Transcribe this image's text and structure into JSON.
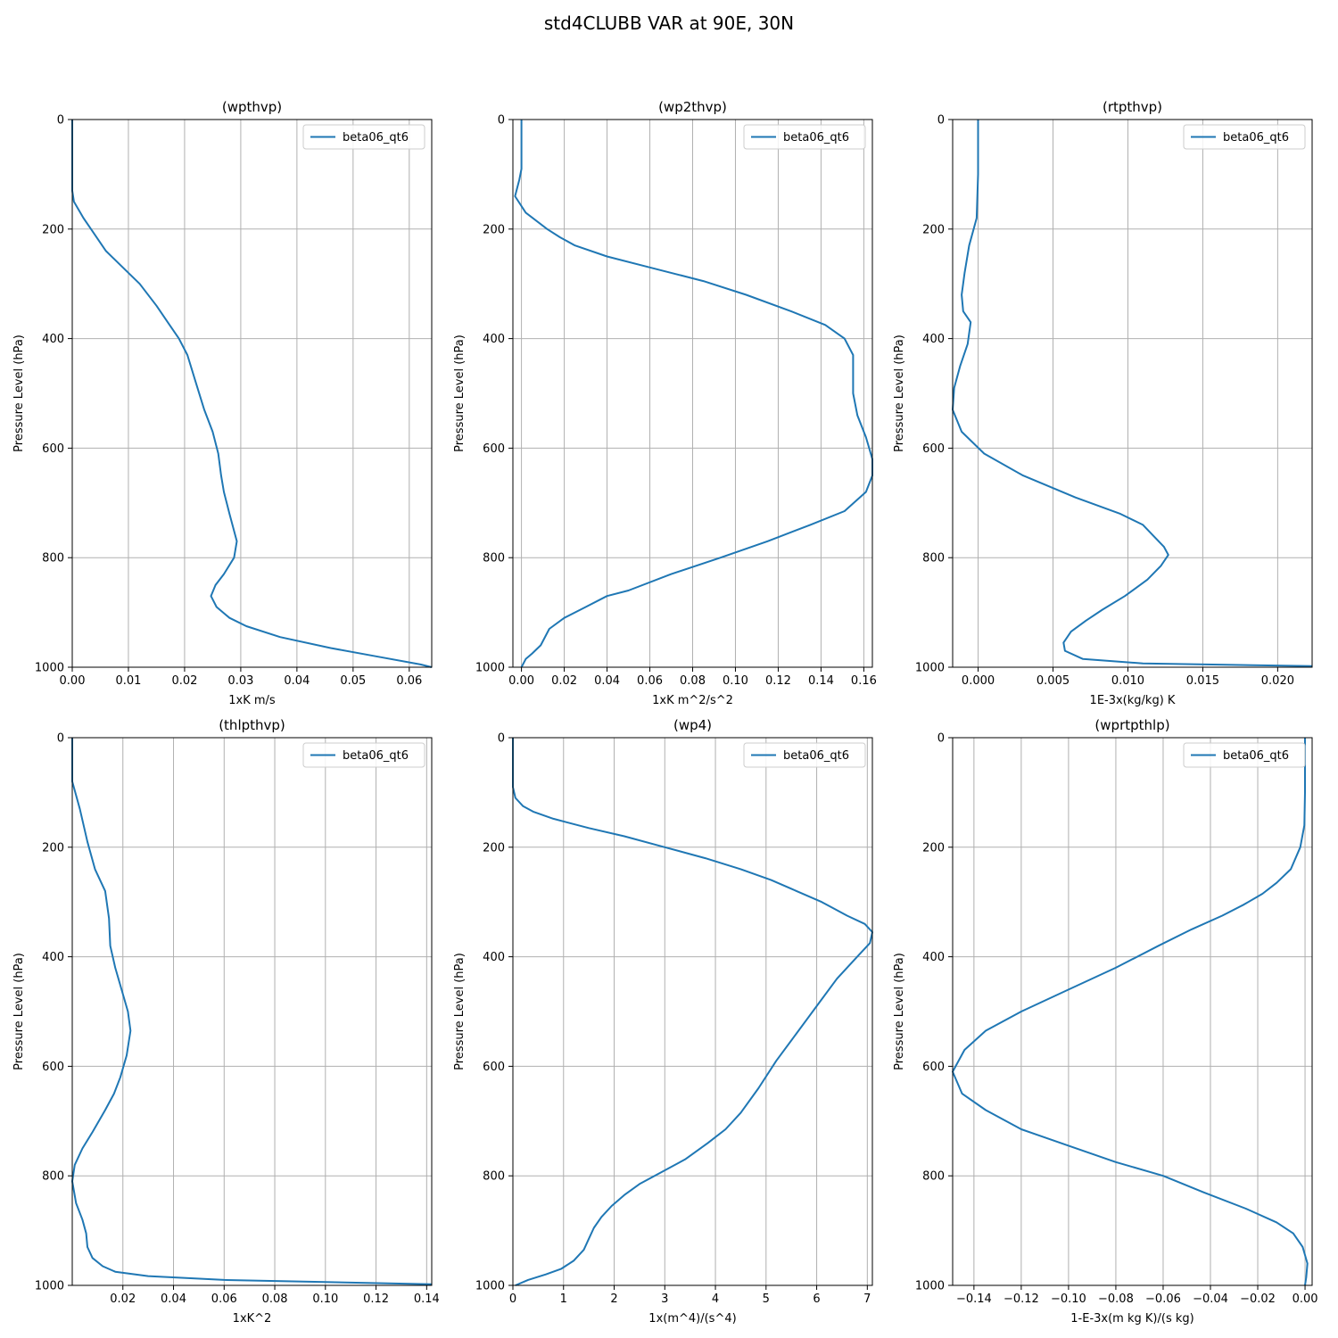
{
  "figure": {
    "title": "std4CLUBB VAR at 90E, 30N"
  },
  "style": {
    "line_color": "#1f77b4",
    "grid_color": "#b0b0b0"
  },
  "chart_data": [
    {
      "type": "line",
      "title": "(wpthvp)",
      "xlabel": "1xK m/s",
      "ylabel": "Pressure Level (hPa)",
      "xlim": [
        0,
        0.064
      ],
      "ylim": [
        1000,
        0
      ],
      "xticks": [
        0,
        0.01,
        0.02,
        0.03,
        0.04,
        0.05,
        0.06
      ],
      "xtick_labels": [
        "0.00",
        "0.01",
        "0.02",
        "0.03",
        "0.04",
        "0.05",
        "0.06"
      ],
      "yticks": [
        0,
        200,
        400,
        600,
        800,
        1000
      ],
      "ytick_labels": [
        "0",
        "200",
        "400",
        "600",
        "800",
        "1000"
      ],
      "grid": true,
      "legend": "top-right",
      "series": [
        {
          "name": "beta06_qt6",
          "points": [
            [
              0,
              0
            ],
            [
              0,
              100
            ],
            [
              0,
              130
            ],
            [
              0.0003,
              150
            ],
            [
              0.002,
              180
            ],
            [
              0.004,
              210
            ],
            [
              0.006,
              240
            ],
            [
              0.009,
              270
            ],
            [
              0.012,
              300
            ],
            [
              0.015,
              340
            ],
            [
              0.017,
              370
            ],
            [
              0.019,
              400
            ],
            [
              0.0205,
              430
            ],
            [
              0.022,
              480
            ],
            [
              0.0235,
              530
            ],
            [
              0.025,
              570
            ],
            [
              0.026,
              610
            ],
            [
              0.0265,
              650
            ],
            [
              0.027,
              680
            ],
            [
              0.028,
              720
            ],
            [
              0.0293,
              770
            ],
            [
              0.0288,
              800
            ],
            [
              0.027,
              830
            ],
            [
              0.0255,
              850
            ],
            [
              0.0247,
              870
            ],
            [
              0.0257,
              890
            ],
            [
              0.028,
              910
            ],
            [
              0.031,
              925
            ],
            [
              0.037,
              945
            ],
            [
              0.046,
              965
            ],
            [
              0.054,
              980
            ],
            [
              0.062,
              995
            ],
            [
              0.064,
              1000
            ]
          ]
        }
      ]
    },
    {
      "type": "line",
      "title": "(wp2thvp)",
      "xlabel": "1xK m^2/s^2",
      "ylabel": "Pressure Level (hPa)",
      "xlim": [
        -0.004,
        0.164
      ],
      "ylim": [
        1000,
        0
      ],
      "xticks": [
        0,
        0.02,
        0.04,
        0.06,
        0.08,
        0.1,
        0.12,
        0.14,
        0.16
      ],
      "xtick_labels": [
        "0.00",
        "0.02",
        "0.04",
        "0.06",
        "0.08",
        "0.10",
        "0.12",
        "0.14",
        "0.16"
      ],
      "yticks": [
        0,
        200,
        400,
        600,
        800,
        1000
      ],
      "ytick_labels": [
        "0",
        "200",
        "400",
        "600",
        "800",
        "1000"
      ],
      "grid": true,
      "legend": "top-right",
      "series": [
        {
          "name": "beta06_qt6",
          "points": [
            [
              0,
              0
            ],
            [
              0,
              90
            ],
            [
              -0.001,
              110
            ],
            [
              -0.003,
              140
            ],
            [
              0.002,
              170
            ],
            [
              0.012,
              200
            ],
            [
              0.018,
              215
            ],
            [
              0.025,
              230
            ],
            [
              0.04,
              250
            ],
            [
              0.06,
              270
            ],
            [
              0.085,
              295
            ],
            [
              0.105,
              320
            ],
            [
              0.126,
              350
            ],
            [
              0.142,
              375
            ],
            [
              0.151,
              400
            ],
            [
              0.155,
              430
            ],
            [
              0.155,
              500
            ],
            [
              0.157,
              540
            ],
            [
              0.161,
              580
            ],
            [
              0.164,
              620
            ],
            [
              0.164,
              650
            ],
            [
              0.161,
              680
            ],
            [
              0.151,
              715
            ],
            [
              0.135,
              740
            ],
            [
              0.115,
              770
            ],
            [
              0.093,
              800
            ],
            [
              0.07,
              830
            ],
            [
              0.05,
              860
            ],
            [
              0.04,
              870
            ],
            [
              0.03,
              890
            ],
            [
              0.02,
              910
            ],
            [
              0.013,
              930
            ],
            [
              0.009,
              960
            ],
            [
              0.005,
              975
            ],
            [
              0.002,
              985
            ],
            [
              0,
              1000
            ]
          ]
        }
      ]
    },
    {
      "type": "line",
      "title": "(rtpthvp)",
      "xlabel": "1E-3x(kg/kg) K",
      "ylabel": "Pressure Level (hPa)",
      "xlim": [
        -0.0017,
        0.0223
      ],
      "ylim": [
        1000,
        0
      ],
      "xticks": [
        0,
        0.005,
        0.01,
        0.015,
        0.02
      ],
      "xtick_labels": [
        "0.000",
        "0.005",
        "0.010",
        "0.015",
        "0.020"
      ],
      "yticks": [
        0,
        200,
        400,
        600,
        800,
        1000
      ],
      "ytick_labels": [
        "0",
        "200",
        "400",
        "600",
        "800",
        "1000"
      ],
      "grid": true,
      "legend": "top-right",
      "series": [
        {
          "name": "beta06_qt6",
          "points": [
            [
              0,
              0
            ],
            [
              0,
              100
            ],
            [
              -0.0001,
              180
            ],
            [
              -0.0006,
              230
            ],
            [
              -0.0009,
              280
            ],
            [
              -0.0011,
              320
            ],
            [
              -0.001,
              350
            ],
            [
              -0.0005,
              370
            ],
            [
              -0.0007,
              410
            ],
            [
              -0.0012,
              450
            ],
            [
              -0.0016,
              490
            ],
            [
              -0.0017,
              530
            ],
            [
              -0.0011,
              570
            ],
            [
              0.0004,
              610
            ],
            [
              0.003,
              650
            ],
            [
              0.0065,
              690
            ],
            [
              0.0095,
              720
            ],
            [
              0.011,
              740
            ],
            [
              0.0124,
              780
            ],
            [
              0.0127,
              795
            ],
            [
              0.0122,
              815
            ],
            [
              0.0113,
              840
            ],
            [
              0.0098,
              870
            ],
            [
              0.0083,
              895
            ],
            [
              0.0072,
              915
            ],
            [
              0.0062,
              935
            ],
            [
              0.0057,
              955
            ],
            [
              0.0058,
              970
            ],
            [
              0.007,
              985
            ],
            [
              0.011,
              993
            ],
            [
              0.0223,
              998
            ]
          ]
        }
      ]
    },
    {
      "type": "line",
      "title": "(thlpthvp)",
      "xlabel": "1xK^2",
      "ylabel": "Pressure Level (hPa)",
      "xlim": [
        0,
        0.142
      ],
      "ylim": [
        1000,
        0
      ],
      "xticks": [
        0.02,
        0.04,
        0.06,
        0.08,
        0.1,
        0.12,
        0.14
      ],
      "xtick_labels": [
        "0.02",
        "0.04",
        "0.06",
        "0.08",
        "0.10",
        "0.12",
        "0.14"
      ],
      "yticks": [
        0,
        200,
        400,
        600,
        800,
        1000
      ],
      "ytick_labels": [
        "0",
        "200",
        "400",
        "600",
        "800",
        "1000"
      ],
      "grid": true,
      "legend": "top-right",
      "series": [
        {
          "name": "beta06_qt6",
          "points": [
            [
              0,
              0
            ],
            [
              0,
              80
            ],
            [
              0.003,
              130
            ],
            [
              0.006,
              190
            ],
            [
              0.009,
              240
            ],
            [
              0.013,
              280
            ],
            [
              0.0145,
              330
            ],
            [
              0.015,
              380
            ],
            [
              0.017,
              420
            ],
            [
              0.0195,
              460
            ],
            [
              0.022,
              500
            ],
            [
              0.023,
              535
            ],
            [
              0.0215,
              580
            ],
            [
              0.019,
              620
            ],
            [
              0.0165,
              650
            ],
            [
              0.013,
              680
            ],
            [
              0.008,
              720
            ],
            [
              0.004,
              750
            ],
            [
              0.001,
              780
            ],
            [
              0,
              810
            ],
            [
              0.0015,
              850
            ],
            [
              0.004,
              880
            ],
            [
              0.0055,
              905
            ],
            [
              0.006,
              930
            ],
            [
              0.008,
              950
            ],
            [
              0.012,
              965
            ],
            [
              0.017,
              975
            ],
            [
              0.03,
              983
            ],
            [
              0.06,
              990
            ],
            [
              0.1,
              994
            ],
            [
              0.142,
              998
            ]
          ]
        }
      ]
    },
    {
      "type": "line",
      "title": "(wp4)",
      "xlabel": "1x(m^4)/(s^4)",
      "ylabel": "Pressure Level (hPa)",
      "xlim": [
        0,
        7.1
      ],
      "ylim": [
        1000,
        0
      ],
      "xticks": [
        0,
        1,
        2,
        3,
        4,
        5,
        6,
        7
      ],
      "xtick_labels": [
        "0",
        "1",
        "2",
        "3",
        "4",
        "5",
        "6",
        "7"
      ],
      "yticks": [
        0,
        200,
        400,
        600,
        800,
        1000
      ],
      "ytick_labels": [
        "0",
        "200",
        "400",
        "600",
        "800",
        "1000"
      ],
      "grid": true,
      "legend": "top-right",
      "series": [
        {
          "name": "beta06_qt6",
          "points": [
            [
              0,
              0
            ],
            [
              0,
              90
            ],
            [
              0.05,
              110
            ],
            [
              0.2,
              125
            ],
            [
              0.4,
              135
            ],
            [
              0.8,
              148
            ],
            [
              1.5,
              165
            ],
            [
              2.2,
              180
            ],
            [
              3,
              200
            ],
            [
              3.8,
              220
            ],
            [
              4.5,
              240
            ],
            [
              5.1,
              260
            ],
            [
              5.6,
              280
            ],
            [
              6.1,
              300
            ],
            [
              6.6,
              325
            ],
            [
              6.95,
              340
            ],
            [
              7.1,
              355
            ],
            [
              7.05,
              375
            ],
            [
              6.8,
              400
            ],
            [
              6.4,
              440
            ],
            [
              6,
              490
            ],
            [
              5.6,
              540
            ],
            [
              5.2,
              590
            ],
            [
              4.85,
              640
            ],
            [
              4.5,
              685
            ],
            [
              4.2,
              715
            ],
            [
              3.85,
              740
            ],
            [
              3.4,
              770
            ],
            [
              2.9,
              795
            ],
            [
              2.5,
              815
            ],
            [
              2.2,
              835
            ],
            [
              1.95,
              855
            ],
            [
              1.75,
              875
            ],
            [
              1.6,
              895
            ],
            [
              1.5,
              915
            ],
            [
              1.4,
              935
            ],
            [
              1.2,
              955
            ],
            [
              0.95,
              970
            ],
            [
              0.65,
              980
            ],
            [
              0.3,
              990
            ],
            [
              0.05,
              1000
            ]
          ]
        }
      ]
    },
    {
      "type": "line",
      "title": "(wprtpthlp)",
      "xlabel": "1-E-3x(m kg K)/(s kg)",
      "ylabel": "Pressure Level (hPa)",
      "xlim": [
        -0.149,
        0.003
      ],
      "ylim": [
        1000,
        0
      ],
      "xticks": [
        -0.14,
        -0.12,
        -0.1,
        -0.08,
        -0.06,
        -0.04,
        -0.02,
        0
      ],
      "xtick_labels": [
        "−0.14",
        "−0.12",
        "−0.10",
        "−0.08",
        "−0.06",
        "−0.04",
        "−0.02",
        "0.00"
      ],
      "yticks": [
        0,
        200,
        400,
        600,
        800,
        1000
      ],
      "ytick_labels": [
        "0",
        "200",
        "400",
        "600",
        "800",
        "1000"
      ],
      "grid": true,
      "legend": "top-right",
      "series": [
        {
          "name": "beta06_qt6",
          "points": [
            [
              0,
              0
            ],
            [
              0,
              100
            ],
            [
              -0.0003,
              160
            ],
            [
              -0.002,
              200
            ],
            [
              -0.006,
              240
            ],
            [
              -0.012,
              265
            ],
            [
              -0.018,
              285
            ],
            [
              -0.026,
              305
            ],
            [
              -0.035,
              325
            ],
            [
              -0.048,
              350
            ],
            [
              -0.062,
              380
            ],
            [
              -0.08,
              420
            ],
            [
              -0.1,
              460
            ],
            [
              -0.12,
              500
            ],
            [
              -0.135,
              535
            ],
            [
              -0.144,
              570
            ],
            [
              -0.149,
              610
            ],
            [
              -0.145,
              650
            ],
            [
              -0.135,
              680
            ],
            [
              -0.12,
              715
            ],
            [
              -0.1,
              745
            ],
            [
              -0.08,
              775
            ],
            [
              -0.06,
              800
            ],
            [
              -0.043,
              830
            ],
            [
              -0.025,
              860
            ],
            [
              -0.012,
              885
            ],
            [
              -0.005,
              905
            ],
            [
              -0.001,
              930
            ],
            [
              0.001,
              960
            ],
            [
              0.0005,
              985
            ],
            [
              0,
              1000
            ]
          ]
        }
      ]
    }
  ]
}
